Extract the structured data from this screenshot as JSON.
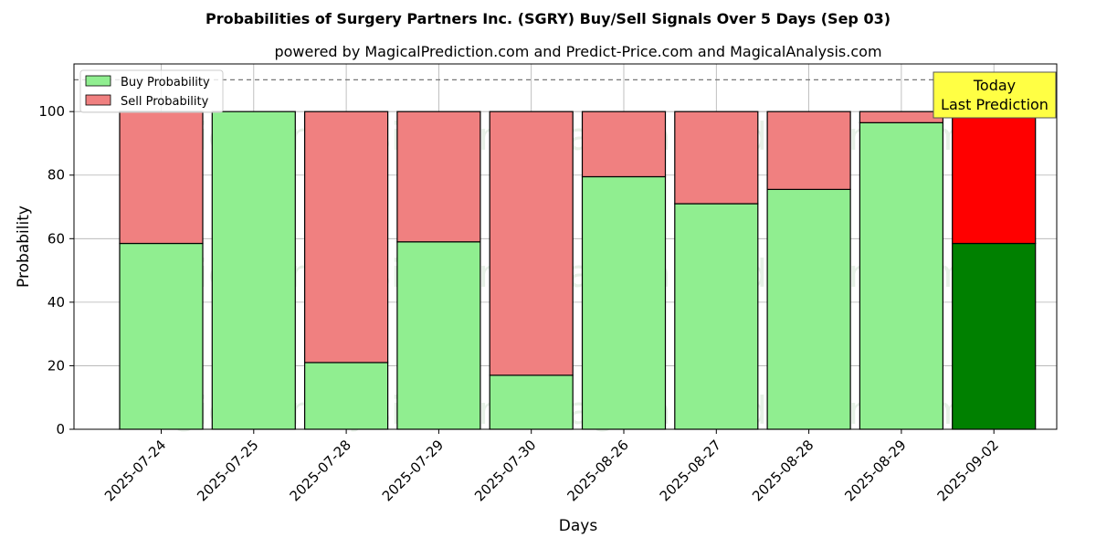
{
  "chart_data": {
    "type": "bar",
    "stacked": true,
    "title": "Probabilities of Surgery Partners Inc. (SGRY) Buy/Sell Signals Over 5 Days (Sep 03)",
    "subtitle": "powered by MagicalPrediction.com and Predict-Price.com and MagicalAnalysis.com",
    "xlabel": "Days",
    "ylabel": "Probability",
    "ylim": [
      0,
      115
    ],
    "yticks": [
      0,
      20,
      40,
      60,
      80,
      100
    ],
    "grid": true,
    "reference_line": 110,
    "legend_position": "top-left",
    "categories": [
      "2025-07-24",
      "2025-07-25",
      "2025-07-28",
      "2025-07-29",
      "2025-07-30",
      "2025-08-26",
      "2025-08-27",
      "2025-08-28",
      "2025-08-29",
      "2025-09-02"
    ],
    "series": [
      {
        "name": "Buy Probability",
        "color": "#90ee90",
        "highlight_color": "#008000",
        "values": [
          58.5,
          100,
          21,
          59,
          17,
          79.5,
          71,
          75.5,
          96.5,
          58.5
        ]
      },
      {
        "name": "Sell Probability",
        "color": "#f08080",
        "highlight_color": "#ff0000",
        "values": [
          41.5,
          0,
          79,
          41,
          83,
          20.5,
          29,
          24.5,
          3.5,
          41.5
        ]
      }
    ],
    "highlight_index": 9,
    "annotation": {
      "line1": "Today",
      "line2": "Last Prediction",
      "background": "#ffff44"
    },
    "watermarks": [
      "MagicalAnalysis.com",
      "MagicalPrediction.com",
      "MagicalAnalysis.com",
      "MagicalPrediction.com",
      "MagicalAnalysis.com",
      "MagicalPrediction.com"
    ]
  }
}
